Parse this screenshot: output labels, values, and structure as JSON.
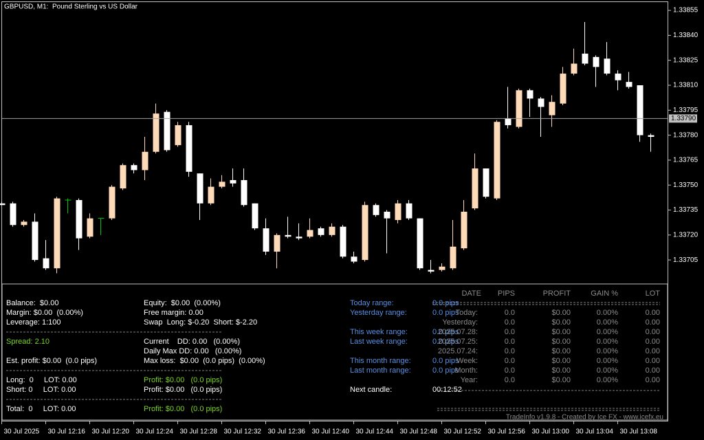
{
  "chart_data": {
    "type": "candlestick",
    "title": "GBPUSD, M1:  Pound Sterling vs US Dollar",
    "categories": [
      "30 Jul 2025",
      null,
      null,
      null,
      "30 Jul 12:16",
      null,
      null,
      null,
      "30 Jul 12:20",
      null,
      null,
      null,
      "30 Jul 12:24",
      null,
      null,
      null,
      "30 Jul 12:28",
      null,
      null,
      null,
      "30 Jul 12:32",
      null,
      null,
      null,
      "30 Jul 12:36",
      null,
      null,
      null,
      "30 Jul 12:40",
      null,
      null,
      null,
      "30 Jul 12:44",
      null,
      null,
      null,
      "30 Jul 12:48",
      null,
      null,
      null,
      "30 Jul 12:52",
      null,
      null,
      null,
      "30 Jul 12:56",
      null,
      null,
      null,
      "30 Jul 13:00",
      null,
      null,
      null,
      "30 Jul 13:04",
      null,
      null,
      null,
      "30 Jul 13:08",
      null,
      null,
      null
    ],
    "open": [
      1.33739,
      1.33739,
      1.33726,
      1.33728,
      1.33706,
      1.337,
      1.33741,
      1.33741,
      1.33719,
      1.3373,
      1.3373,
      1.33748,
      1.33762,
      1.33759,
      1.3377,
      1.33794,
      1.33774,
      1.33786,
      1.33757,
      1.33739,
      1.33749,
      1.33753,
      1.33753,
      1.33739,
      1.33724,
      1.3371,
      1.3372,
      1.33719,
      1.33719,
      1.33724,
      1.3372,
      1.33725,
      1.33707,
      1.33705,
      1.33738,
      1.33734,
      1.33729,
      1.33739,
      1.3373,
      1.33699,
      1.33699,
      1.337,
      1.33712,
      1.33736,
      1.3376,
      1.33742,
      1.3379,
      1.33785,
      1.33807,
      1.33802,
      1.33792,
      1.33799,
      1.33817,
      1.33829,
      1.33827,
      1.33826,
      1.33817,
      1.33812,
      1.3381,
      1.3378
    ],
    "high": [
      1.3374,
      1.3374,
      1.33729,
      1.33733,
      1.33717,
      1.33743,
      1.33742,
      1.33742,
      1.33733,
      1.3373,
      1.3375,
      1.33763,
      1.33763,
      1.33779,
      1.33799,
      1.33795,
      1.33788,
      1.33788,
      1.33757,
      1.33754,
      1.33756,
      1.3376,
      1.3376,
      1.33739,
      1.3373,
      1.33721,
      1.33731,
      1.33727,
      1.3373,
      1.33725,
      1.33727,
      1.33726,
      1.3371,
      1.3374,
      1.33739,
      1.33735,
      1.33741,
      1.33741,
      1.3373,
      1.33705,
      1.33703,
      1.33729,
      1.33741,
      1.33769,
      1.3376,
      1.33789,
      1.33809,
      1.33808,
      1.33808,
      1.33803,
      1.33804,
      1.33821,
      1.33832,
      1.33848,
      1.33828,
      1.33836,
      1.33819,
      1.33818,
      1.3381,
      1.33781
    ],
    "low": [
      1.33738,
      1.33725,
      1.33725,
      1.33704,
      1.33699,
      1.33697,
      1.33733,
      1.33711,
      1.33718,
      1.3372,
      1.33729,
      1.33747,
      1.33757,
      1.33753,
      1.33769,
      1.3377,
      1.33773,
      1.33755,
      1.33729,
      1.33738,
      1.33748,
      1.33749,
      1.33737,
      1.33723,
      1.33708,
      1.337,
      1.33718,
      1.33717,
      1.33718,
      1.33719,
      1.33719,
      1.33706,
      1.33703,
      1.33704,
      1.33731,
      1.33709,
      1.33727,
      1.33729,
      1.33699,
      1.33697,
      1.33698,
      1.33699,
      1.33711,
      1.33735,
      1.33742,
      1.33741,
      1.33784,
      1.33784,
      1.33791,
      1.33779,
      1.33785,
      1.33798,
      1.33816,
      1.33822,
      1.33809,
      1.33816,
      1.33807,
      1.33808,
      1.33776,
      1.3377
    ],
    "close": [
      1.33738,
      1.33726,
      1.33728,
      1.33705,
      1.337,
      1.33742,
      1.33741,
      1.33718,
      1.3373,
      1.3373,
      1.33749,
      1.33762,
      1.33759,
      1.3377,
      1.33793,
      1.33771,
      1.33786,
      1.33758,
      1.33739,
      1.33749,
      1.33752,
      1.33751,
      1.33738,
      1.33724,
      1.3371,
      1.3372,
      1.33719,
      1.33718,
      1.33723,
      1.3372,
      1.33725,
      1.33707,
      1.33704,
      1.33738,
      1.33732,
      1.3373,
      1.33739,
      1.3373,
      1.337,
      1.33698,
      1.33701,
      1.33713,
      1.33734,
      1.3376,
      1.33743,
      1.33788,
      1.33786,
      1.33807,
      1.33802,
      1.33797,
      1.338,
      1.33817,
      1.33823,
      1.33823,
      1.33821,
      1.33817,
      1.33813,
      1.33809,
      1.3378,
      1.33779
    ],
    "ylim": [
      1.33691,
      1.3386
    ],
    "yticks": [
      1.33855,
      {
        "value": 1.3384,
        "label": "1.33840"
      },
      1.33825,
      {
        "value": 1.3381,
        "label": "1.33810"
      },
      1.33795,
      {
        "value": 1.3378,
        "label": "1.33780"
      },
      1.33765,
      {
        "value": 1.3375,
        "label": "1.33750"
      },
      1.33735,
      {
        "value": 1.3372,
        "label": "1.33720"
      },
      1.33705
    ],
    "bid": {
      "value": 1.3379,
      "label": "1.33790"
    },
    "bull_color": "#ffdab9",
    "bear_color": "#ffffff",
    "doji_color": "#00c800"
  },
  "info_panel": {
    "balance": "Balance:  $0.00",
    "equity": "Equity:  $0.00  (0.00%)",
    "margin": "Margin: $0.00  (0.00%)",
    "free_margin": "Free margin: 0.00",
    "leverage": "Leverage: 1:100",
    "swap": "Swap  Long: $-0.20  Short: $-2.20",
    "spread": "Spread: 2.10",
    "current_dd": "Current    DD: 0.00   (0.00%)",
    "daily_max_dd": "Daily Max DD: 0.00   (0.00%)",
    "est_profit": "Est. profit: $0.00  (0.0 pips)",
    "max_loss": "Max loss:  $0.00  (0.0 pips)  (0.00%)",
    "long": "Long:  0     LOT: 0.00",
    "long_profit": "Profit: $0.00   (0.0 pips)",
    "short": "Short: 0     LOT: 0.00",
    "short_profit": "Profit: $0.00   (0.0 pips)",
    "total": "Total:  0     LOT: 0.00",
    "total_profit": "Profit: $0.00   (0.0 pips)",
    "ranges": [
      {
        "label": "Today range:",
        "value": "0.0 pips"
      },
      {
        "label": "Yesterday range:",
        "value": "0.0 pips"
      },
      {
        "label": "This week range:",
        "value": "0.0 pips"
      },
      {
        "label": "Last week range:",
        "value": "0.0 pips"
      },
      {
        "label": "This month range:",
        "value": "0.0 pips"
      },
      {
        "label": "Last month range:",
        "value": "0.0 pips"
      }
    ],
    "next_candle": {
      "label": "Next candle:",
      "value": "00:12:52"
    },
    "stats": {
      "headers": [
        "DATE",
        "PIPS",
        "PROFIT",
        "GAIN %",
        "LOT"
      ],
      "rows": [
        [
          "Today:",
          "0.0",
          "$0.00",
          "0.00%",
          "0.00"
        ],
        [
          "Yesterday:",
          "0.0",
          "$0.00",
          "0.00%",
          "0.00"
        ],
        [
          "2025.07.28:",
          "0.0",
          "$0.00",
          "0.00%",
          "0.00"
        ],
        [
          "2025.07.25:",
          "0.0",
          "$0.00",
          "0.00%",
          "0.00"
        ],
        [
          "2025.07.24:",
          "0.0",
          "$0.00",
          "0.00%",
          "0.00"
        ],
        [
          "Week:",
          "0.0",
          "$0.00",
          "0.00%",
          "0.00"
        ],
        [
          "Month:",
          "0.0",
          "$0.00",
          "0.00%",
          "0.00"
        ],
        [
          "Year:",
          "0.0",
          "$0.00",
          "0.00%",
          "0.00"
        ]
      ]
    },
    "footer": "TradeInfo v1.9.8 - Created by Ice FX - www.icefx.eu"
  }
}
